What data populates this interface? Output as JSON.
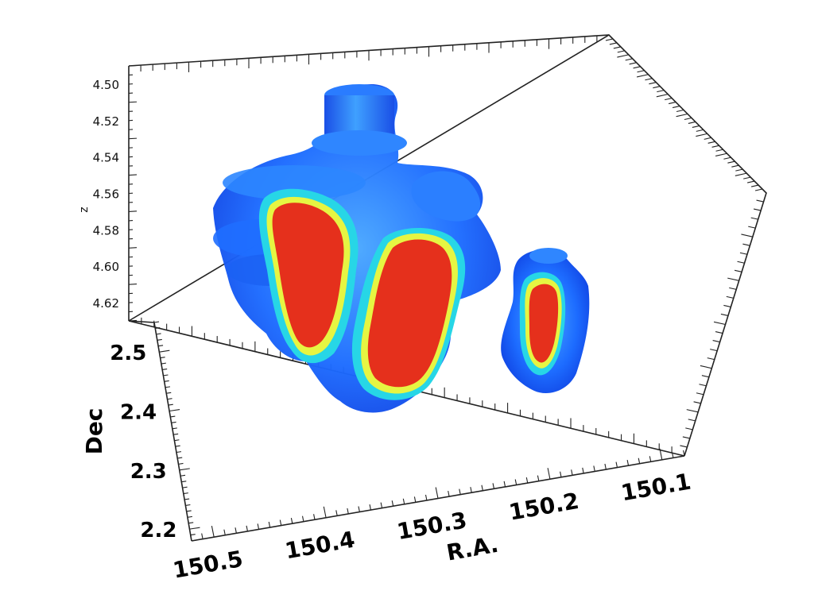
{
  "chart_data": {
    "type": "volume-3d",
    "title": "",
    "xlabel": "R.A.",
    "ylabel": "Dec",
    "zlabel": "z",
    "x_ticks": [
      "150.5",
      "150.4",
      "150.3",
      "150.2",
      "150.1"
    ],
    "y_ticks": [
      "2.2",
      "2.3",
      "2.4",
      "2.5"
    ],
    "z_ticks": [
      "4.50",
      "4.52",
      "4.54",
      "4.56",
      "4.58",
      "4.60",
      "4.62"
    ],
    "x_range": [
      150.52,
      150.08
    ],
    "y_range": [
      2.18,
      2.55
    ],
    "z_range": [
      4.49,
      4.63
    ],
    "colors": {
      "outer": "#1a5cff",
      "mid": "#19d6e8",
      "rim": "#e9f542",
      "core": "#e8301c"
    },
    "structures": [
      {
        "component": "left-core",
        "ra_center": 150.43,
        "dec_center": 2.48,
        "z_center": 4.58
      },
      {
        "component": "middle-core",
        "ra_center": 150.34,
        "dec_center": 2.42,
        "z_center": 4.6
      },
      {
        "component": "right-core",
        "ra_center": 150.2,
        "dec_center": 2.44,
        "z_center": 4.61
      }
    ]
  }
}
